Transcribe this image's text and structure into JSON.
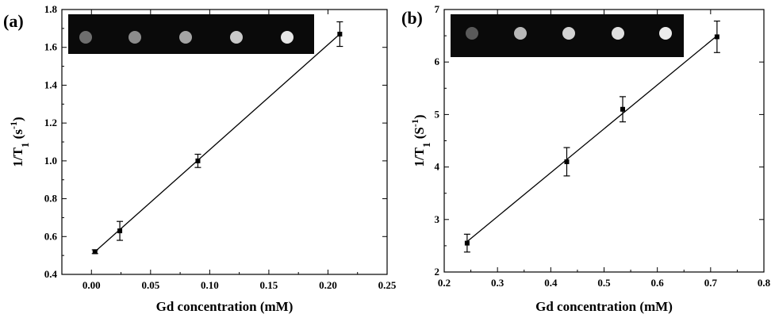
{
  "chart_data": [
    {
      "type": "scatter",
      "panel_label": "(a)",
      "xlabel": "Gd concentration (mM)",
      "ylabel": {
        "main": "1/T",
        "sub": "1",
        "unit": " (s",
        "sup": "-1",
        "close": ")"
      },
      "xlim": [
        -0.025,
        0.25
      ],
      "ylim": [
        0.4,
        1.8
      ],
      "xticks": [
        0.0,
        0.05,
        0.1,
        0.15,
        0.2,
        0.25
      ],
      "xtick_labels": [
        "0.00",
        "0.05",
        "0.10",
        "0.15",
        "0.20",
        "0.25"
      ],
      "yticks": [
        0.4,
        0.6,
        0.8,
        1.0,
        1.2,
        1.4,
        1.6,
        1.8
      ],
      "ytick_labels": [
        "0.4",
        "0.6",
        "0.8",
        "1.0",
        "1.2",
        "1.4",
        "1.6",
        "1.8"
      ],
      "points": [
        {
          "x": 0.003,
          "y": 0.52,
          "err": 0.01
        },
        {
          "x": 0.024,
          "y": 0.63,
          "err": 0.05
        },
        {
          "x": 0.09,
          "y": 1.0,
          "err": 0.035
        },
        {
          "x": 0.21,
          "y": 1.67,
          "err": 0.065
        }
      ],
      "fit": {
        "x": [
          0.003,
          0.21
        ],
        "y": [
          0.52,
          1.67
        ]
      },
      "inset": {
        "spots": [
          0.35,
          0.5,
          0.62,
          0.8,
          0.95
        ],
        "grid": "off"
      },
      "grid": false
    },
    {
      "type": "scatter",
      "panel_label": "(b)",
      "xlabel": "Gd concentration (mM)",
      "ylabel": {
        "main": "1/T",
        "sub": "1",
        "unit": " (S",
        "sup": "-1",
        "close": ")"
      },
      "xlim": [
        0.2,
        0.8
      ],
      "ylim": [
        2,
        7
      ],
      "xticks": [
        0.2,
        0.3,
        0.4,
        0.5,
        0.6,
        0.7,
        0.8
      ],
      "xtick_labels": [
        "0.2",
        "0.3",
        "0.4",
        "0.5",
        "0.6",
        "0.7",
        "0.8"
      ],
      "yticks": [
        2,
        3,
        4,
        5,
        6,
        7
      ],
      "ytick_labels": [
        "2",
        "3",
        "4",
        "5",
        "6",
        "7"
      ],
      "points": [
        {
          "x": 0.243,
          "y": 2.55,
          "err": 0.17
        },
        {
          "x": 0.43,
          "y": 4.1,
          "err": 0.27
        },
        {
          "x": 0.535,
          "y": 5.1,
          "err": 0.24
        },
        {
          "x": 0.712,
          "y": 6.48,
          "err": 0.3
        }
      ],
      "fit": {
        "x": [
          0.243,
          0.712
        ],
        "y": [
          2.58,
          6.5
        ]
      },
      "inset": {
        "spots": [
          0.25,
          0.72,
          0.85,
          0.92,
          0.98
        ],
        "grid": "off"
      },
      "grid": false
    }
  ]
}
